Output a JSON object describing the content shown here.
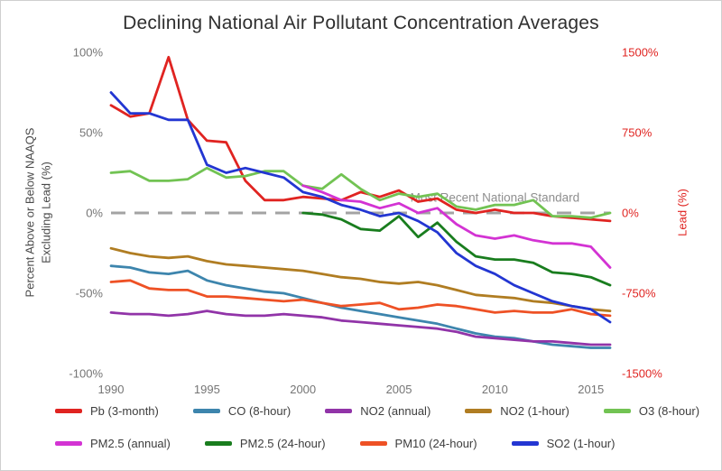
{
  "chart_data": {
    "type": "line",
    "title": "Declining National Air Pollutant Concentration Averages",
    "x": [
      1990,
      1991,
      1992,
      1993,
      1994,
      1995,
      1996,
      1997,
      1998,
      1999,
      2000,
      2001,
      2002,
      2003,
      2004,
      2005,
      2006,
      2007,
      2008,
      2009,
      2010,
      2011,
      2012,
      2013,
      2014,
      2015,
      2016
    ],
    "x_tick_values": [
      1990,
      1995,
      2000,
      2005,
      2010,
      2015
    ],
    "x_tick_labels": [
      "1990",
      "1995",
      "2000",
      "2005",
      "2010",
      "2015"
    ],
    "left_axis": {
      "label_line1": "Percent Above or Below NAAQS",
      "label_line2": "Excluding Lead (%)",
      "range": [
        -100,
        100
      ],
      "tick_values": [
        100,
        50,
        0,
        -50,
        -100
      ],
      "ticks": [
        "100%",
        "50%",
        "0%",
        "-50%",
        "-100%"
      ],
      "color": "#757575"
    },
    "right_axis": {
      "label": "Lead (%)",
      "range": [
        -1500,
        1500
      ],
      "tick_values": [
        1500,
        750,
        0,
        -750,
        -1500
      ],
      "ticks": [
        "1500%",
        "750%",
        "0%",
        "-750%",
        "-1500%"
      ],
      "color": "#e02421"
    },
    "zero_line": {
      "color": "#a3a3a3",
      "dash": "16 10",
      "width": 3
    },
    "annotation": {
      "text": "Most Recent National Standard",
      "x": 2010,
      "y": 7,
      "color": "#8f8f8f",
      "font_size": 13.5
    },
    "grid": false,
    "legend_position": "bottom",
    "series": [
      {
        "name": "Pb (3-month)",
        "color": "#e02421",
        "axis": "right",
        "values": [
          1005,
          900,
          930,
          1455,
          870,
          675,
          660,
          300,
          120,
          120,
          150,
          135,
          120,
          195,
          150,
          210,
          105,
          135,
          30,
          0,
          30,
          0,
          0,
          -30,
          -45,
          -60,
          -75
        ]
      },
      {
        "name": "CO (8-hour)",
        "color": "#3d85ad",
        "axis": "left",
        "values": [
          -33,
          -34,
          -37,
          -38,
          -36,
          -42,
          -45,
          -47,
          -49,
          -50,
          -53,
          -56,
          -59,
          -61,
          -63,
          -65,
          -67,
          -69,
          -72,
          -75,
          -77,
          -78,
          -80,
          -82,
          -83,
          -84,
          -84
        ]
      },
      {
        "name": "NO2 (annual)",
        "color": "#9134a8",
        "axis": "left",
        "values": [
          -62,
          -63,
          -63,
          -64,
          -63,
          -61,
          -63,
          -64,
          -64,
          -63,
          -64,
          -65,
          -67,
          -68,
          -69,
          -70,
          -71,
          -72,
          -74,
          -77,
          -78,
          -79,
          -80,
          -80,
          -81,
          -82,
          -82
        ]
      },
      {
        "name": "NO2 (1-hour)",
        "color": "#b07d22",
        "axis": "left",
        "values": [
          -22,
          -25,
          -27,
          -28,
          -27,
          -30,
          -32,
          -33,
          -34,
          -35,
          -36,
          -38,
          -40,
          -41,
          -43,
          -44,
          -43,
          -45,
          -48,
          -51,
          -52,
          -53,
          -55,
          -56,
          -58,
          -60,
          -61
        ]
      },
      {
        "name": "O3 (8-hour)",
        "color": "#72c353",
        "axis": "left",
        "values": [
          25,
          26,
          20,
          20,
          21,
          28,
          22,
          23,
          26,
          26,
          17,
          15,
          24,
          15,
          8,
          12,
          10,
          12,
          4,
          2,
          5,
          5,
          8,
          -2,
          -2,
          -3,
          0
        ]
      },
      {
        "name": "PM2.5 (annual)",
        "color": "#d333d3",
        "axis": "left",
        "values": [
          null,
          null,
          null,
          null,
          null,
          null,
          null,
          null,
          null,
          null,
          17,
          13,
          8,
          7,
          3,
          6,
          0,
          3,
          -7,
          -14,
          -16,
          -14,
          -17,
          -19,
          -19,
          -21,
          -34
        ]
      },
      {
        "name": "PM2.5 (24-hour)",
        "color": "#197d1e",
        "axis": "left",
        "values": [
          null,
          null,
          null,
          null,
          null,
          null,
          null,
          null,
          null,
          null,
          0,
          -1,
          -4,
          -10,
          -11,
          -2,
          -15,
          -6,
          -18,
          -27,
          -29,
          -29,
          -31,
          -37,
          -38,
          -40,
          -45
        ]
      },
      {
        "name": "PM10 (24-hour)",
        "color": "#ee5125",
        "axis": "left",
        "values": [
          -43,
          -42,
          -47,
          -48,
          -48,
          -52,
          -52,
          -53,
          -54,
          -55,
          -54,
          -56,
          -58,
          -57,
          -56,
          -60,
          -59,
          -57,
          -58,
          -60,
          -62,
          -61,
          -62,
          -62,
          -60,
          -63,
          -64
        ]
      },
      {
        "name": "SO2 (1-hour)",
        "color": "#2336d2",
        "axis": "left",
        "values": [
          75,
          62,
          62,
          58,
          58,
          30,
          25,
          28,
          25,
          22,
          13,
          10,
          5,
          2,
          -2,
          0,
          -5,
          -12,
          -25,
          -33,
          -38,
          -45,
          -50,
          -55,
          -58,
          -60,
          -68
        ]
      }
    ]
  }
}
